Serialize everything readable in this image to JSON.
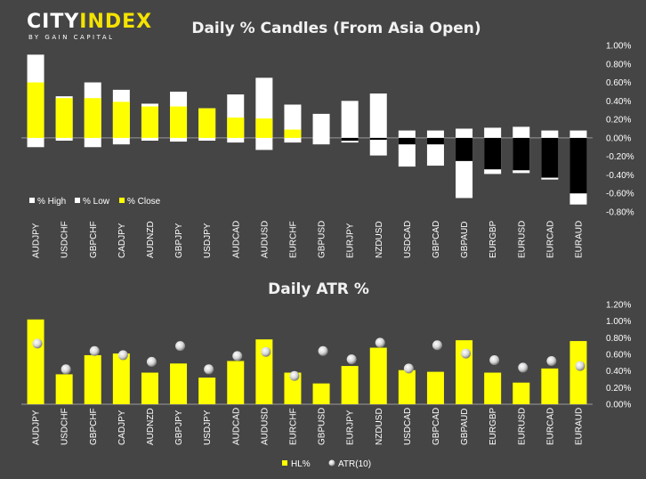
{
  "brand": {
    "name_part1": "CITY",
    "name_part2": "INDEX",
    "tagline": "BY GAIN CAPITAL",
    "accent_color": "#f5e300"
  },
  "colors": {
    "background": "#454545",
    "yellow": "#ffff00",
    "white": "#ffffff",
    "black": "#000000"
  },
  "chart_data": [
    {
      "type": "bar",
      "title": "Daily % Candles (From Asia Open)",
      "categories": [
        "AUDJPY",
        "USDCHF",
        "GBPCHF",
        "CADJPY",
        "AUDNZD",
        "GBPJPY",
        "USDJPY",
        "AUDCAD",
        "AUDUSD",
        "EURCHF",
        "GBPUSD",
        "EURJPY",
        "NZDUSD",
        "USDCAD",
        "GBPCAD",
        "GBPAUD",
        "EURGBP",
        "EURUSD",
        "EURCAD",
        "EURAUD"
      ],
      "series": [
        {
          "name": "% High",
          "values": [
            0.9,
            0.45,
            0.6,
            0.52,
            0.37,
            0.5,
            0.32,
            0.47,
            0.65,
            0.36,
            0.26,
            0.4,
            0.48,
            0.08,
            0.08,
            0.1,
            0.11,
            0.12,
            0.08,
            0.08
          ]
        },
        {
          "name": "% Low",
          "values": [
            -0.1,
            -0.03,
            -0.1,
            -0.07,
            -0.03,
            -0.04,
            -0.03,
            -0.05,
            -0.13,
            -0.05,
            -0.07,
            -0.05,
            -0.19,
            -0.31,
            -0.3,
            -0.65,
            -0.39,
            -0.38,
            -0.45,
            -0.72
          ]
        },
        {
          "name": "% Close",
          "values": [
            0.6,
            0.43,
            0.43,
            0.39,
            0.34,
            0.34,
            0.32,
            0.22,
            0.21,
            0.09,
            0.0,
            -0.03,
            -0.02,
            -0.07,
            -0.07,
            -0.25,
            -0.34,
            -0.35,
            -0.43,
            -0.6
          ]
        }
      ],
      "ylim": [
        -0.8,
        1.0
      ],
      "yticks": [
        "-0.80%",
        "-0.60%",
        "-0.40%",
        "-0.20%",
        "0.00%",
        "0.20%",
        "0.40%",
        "0.60%",
        "0.80%",
        "1.00%"
      ],
      "legend": "bottom-left",
      "grid": false
    },
    {
      "type": "bar",
      "title": "Daily ATR %",
      "categories": [
        "AUDJPY",
        "USDCHF",
        "GBPCHF",
        "CADJPY",
        "AUDNZD",
        "GBPJPY",
        "USDJPY",
        "AUDCAD",
        "AUDUSD",
        "EURCHF",
        "GBPUSD",
        "EURJPY",
        "NZDUSD",
        "USDCAD",
        "GBPCAD",
        "GBPAUD",
        "EURGBP",
        "EURUSD",
        "EURCAD",
        "EURAUD"
      ],
      "series": [
        {
          "name": "HL%",
          "values": [
            1.02,
            0.36,
            0.59,
            0.61,
            0.38,
            0.49,
            0.32,
            0.52,
            0.78,
            0.38,
            0.25,
            0.46,
            0.68,
            0.41,
            0.39,
            0.77,
            0.38,
            0.26,
            0.43,
            0.76
          ]
        },
        {
          "name": "ATR(10)",
          "values": [
            0.73,
            0.42,
            0.64,
            0.59,
            0.51,
            0.7,
            0.42,
            0.58,
            0.63,
            0.34,
            0.64,
            0.54,
            0.74,
            0.43,
            0.71,
            0.61,
            0.53,
            0.44,
            0.52,
            0.46
          ]
        }
      ],
      "ylim": [
        0.0,
        1.2
      ],
      "yticks": [
        "0.00%",
        "0.20%",
        "0.40%",
        "0.60%",
        "0.80%",
        "1.00%",
        "1.20%"
      ],
      "legend": "bottom",
      "grid": false
    }
  ]
}
